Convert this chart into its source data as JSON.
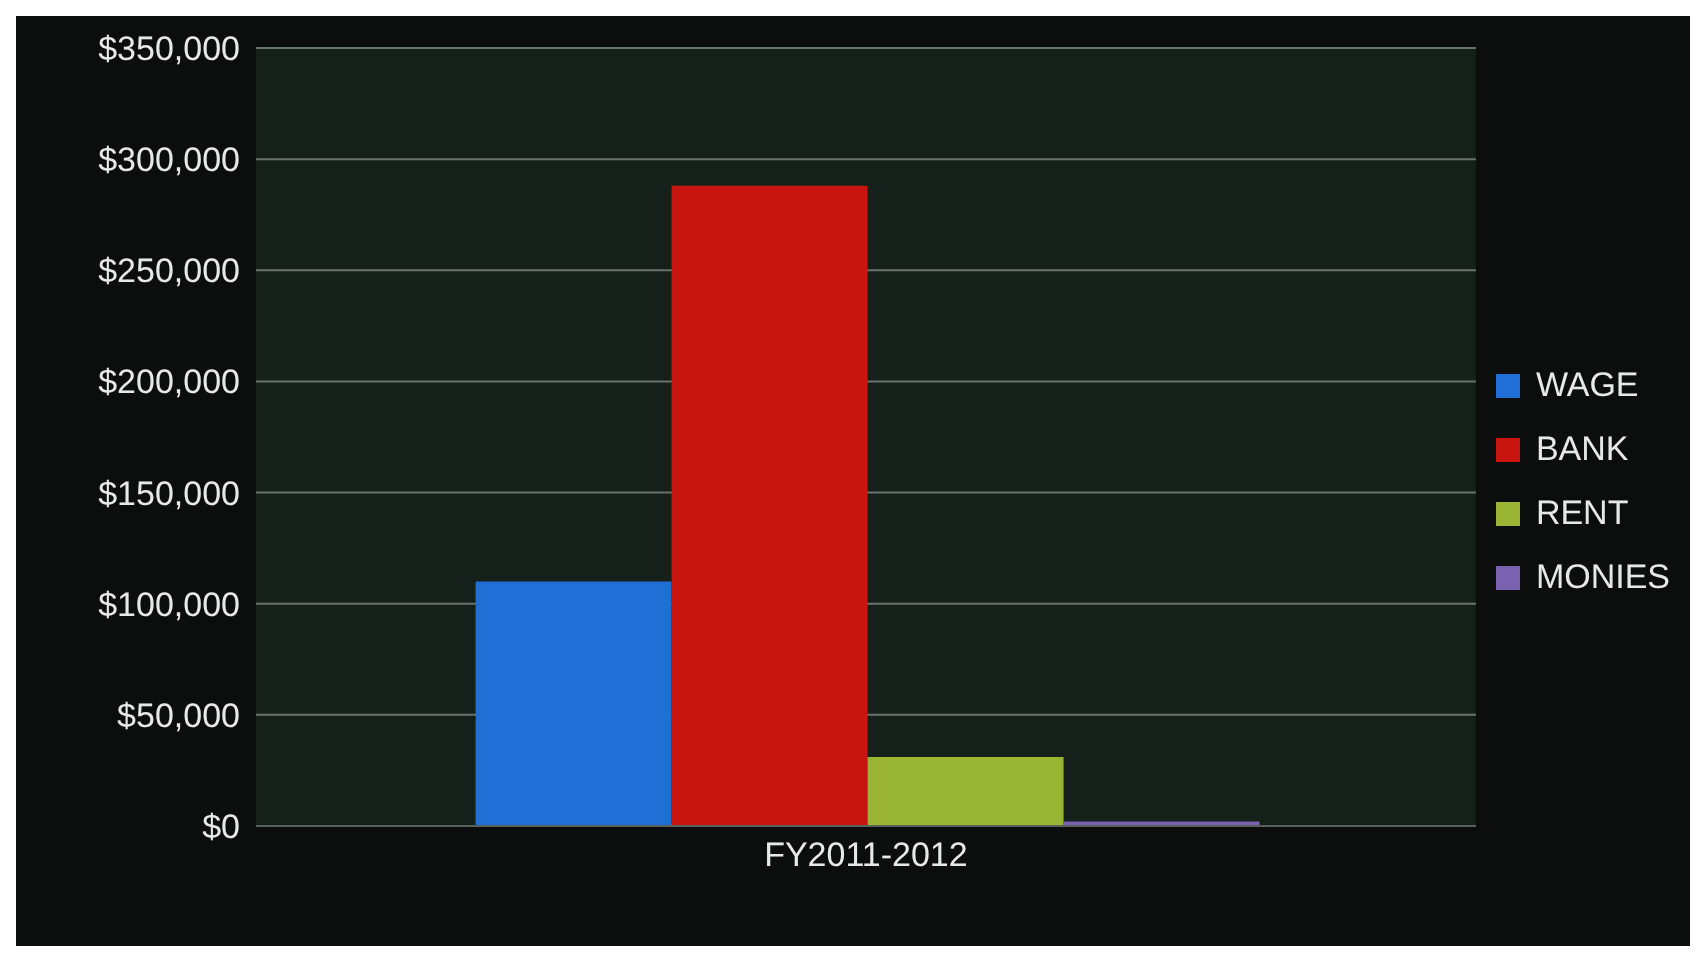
{
  "chart_data": {
    "type": "bar",
    "categories": [
      "FY2011-2012"
    ],
    "series": [
      {
        "name": "WAGE",
        "color": "#1f6fd6",
        "values": [
          110000
        ]
      },
      {
        "name": "BANK",
        "color": "#c8150f",
        "values": [
          288000
        ]
      },
      {
        "name": "RENT",
        "color": "#9ab534",
        "values": [
          31000
        ]
      },
      {
        "name": "MONIES",
        "color": "#7a62b0",
        "values": [
          2000
        ]
      }
    ],
    "ylim": [
      0,
      350000
    ],
    "yticks": [
      {
        "value": 0,
        "label": "$0"
      },
      {
        "value": 50000,
        "label": "$50,000"
      },
      {
        "value": 100000,
        "label": "$100,000"
      },
      {
        "value": 150000,
        "label": "$150,000"
      },
      {
        "value": 200000,
        "label": "$200,000"
      },
      {
        "value": 250000,
        "label": "$250,000"
      },
      {
        "value": 300000,
        "label": "$300,000"
      },
      {
        "value": 350000,
        "label": "$350,000"
      }
    ],
    "grid": "y",
    "legend": "right"
  }
}
